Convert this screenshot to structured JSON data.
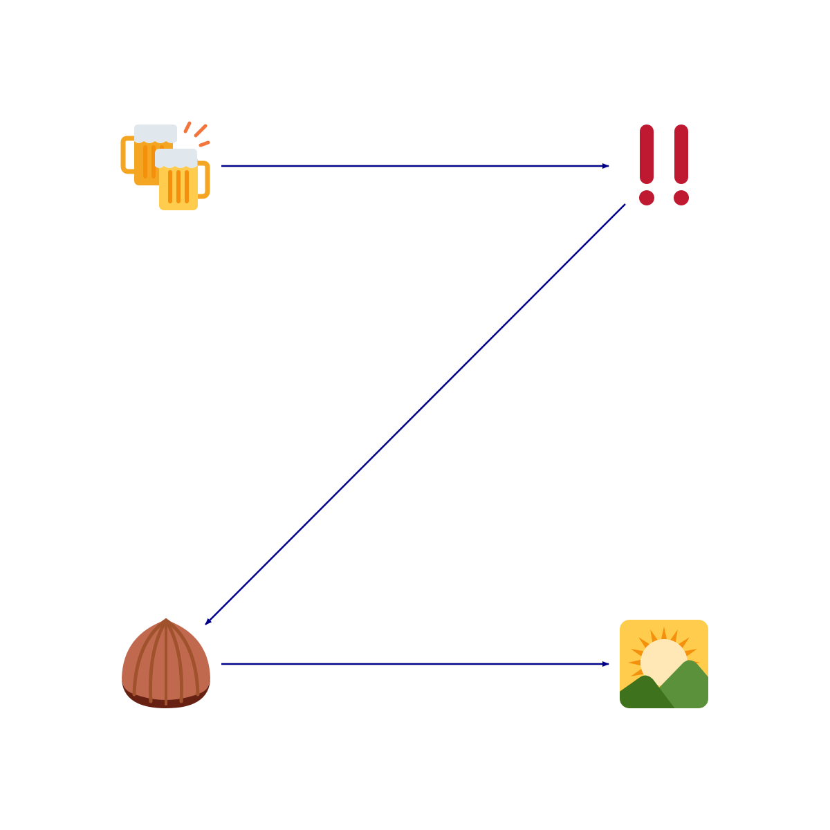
{
  "diagram": {
    "nodes": [
      {
        "id": "n1",
        "icon": "clinking-beer-mugs-icon"
      },
      {
        "id": "n2",
        "icon": "double-exclamation-mark-icon"
      },
      {
        "id": "n3",
        "icon": "chestnut-icon"
      },
      {
        "id": "n4",
        "icon": "sunrise-over-mountains-icon"
      }
    ],
    "edges": [
      {
        "from": "n1",
        "to": "n2"
      },
      {
        "from": "n2",
        "to": "n3"
      },
      {
        "from": "n3",
        "to": "n4"
      }
    ]
  },
  "colors": {
    "edge": "#00008b",
    "background": "#ffffff",
    "beer_handle": "#f4a623",
    "beer_body": "#ffcc4d",
    "beer_stripe": "#f4900c",
    "beer_foam": "#e1e8ed",
    "spark": "#f4753c",
    "exclamation": "#be1931",
    "chestnut_shell": "#c1694f",
    "chestnut_ridge": "#a0522d",
    "chestnut_base": "#662113",
    "sunrise_sky": "#ffcc4d",
    "sun_rays": "#f4900c",
    "sun_disc": "#ffe8b6",
    "hill_light": "#5c913b",
    "hill_dark": "#3e721d"
  }
}
